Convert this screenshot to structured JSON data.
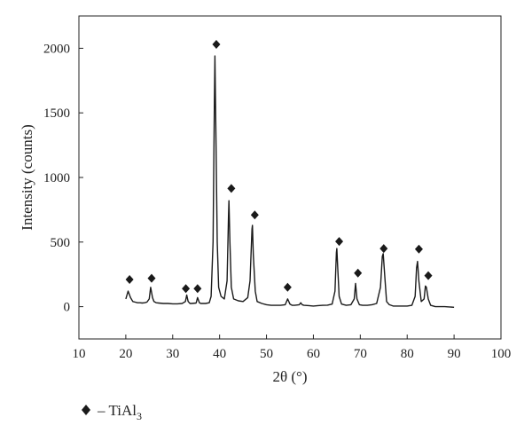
{
  "chart_data": {
    "type": "line",
    "xlabel": "2θ (°)",
    "ylabel": "Intensity (counts)",
    "xlim": [
      10,
      100
    ],
    "ylim": [
      -250,
      2250
    ],
    "xticks": [
      10,
      20,
      30,
      40,
      50,
      60,
      70,
      80,
      90,
      100
    ],
    "yticks": [
      0,
      500,
      1000,
      1500,
      2000
    ],
    "series": [
      {
        "name": "",
        "x": [
          20.0,
          20.5,
          21.0,
          21.5,
          22.0,
          22.5,
          23.0,
          23.5,
          24.0,
          24.5,
          25.0,
          25.3,
          25.7,
          26.0,
          26.5,
          27.0,
          28.0,
          29.0,
          30.0,
          31.0,
          32.0,
          32.7,
          33.0,
          33.3,
          33.7,
          34.0,
          35.0,
          35.3,
          35.7,
          36.0,
          37.0,
          37.8,
          38.2,
          38.6,
          38.9,
          39.0,
          39.2,
          39.5,
          39.8,
          40.3,
          41.0,
          41.6,
          41.9,
          42.0,
          42.2,
          42.5,
          43.0,
          44.0,
          45.0,
          46.0,
          46.5,
          46.9,
          47.0,
          47.2,
          47.6,
          48.0,
          49.0,
          50.0,
          51.0,
          52.0,
          53.0,
          54.0,
          54.5,
          55.0,
          55.5,
          56.0,
          57.0,
          57.3,
          57.6,
          58.0,
          59.0,
          60.0,
          61.0,
          62.0,
          63.0,
          64.0,
          64.6,
          64.9,
          65.0,
          65.2,
          65.5,
          66.0,
          67.0,
          68.0,
          68.7,
          69.0,
          69.3,
          69.8,
          70.5,
          71.5,
          72.5,
          73.5,
          74.3,
          74.7,
          74.9,
          75.2,
          75.6,
          76.2,
          77.0,
          78.0,
          79.0,
          80.0,
          81.0,
          81.7,
          82.0,
          82.2,
          82.5,
          83.0,
          83.6,
          83.9,
          84.1,
          84.5,
          85.0,
          86.0,
          87.0,
          88.0,
          89.0,
          90.0
        ],
        "y": [
          60,
          120,
          70,
          40,
          35,
          30,
          30,
          28,
          30,
          35,
          60,
          150,
          70,
          40,
          30,
          28,
          25,
          25,
          22,
          22,
          25,
          40,
          90,
          40,
          25,
          25,
          28,
          70,
          30,
          25,
          25,
          30,
          80,
          500,
          1600,
          1940,
          1400,
          500,
          150,
          80,
          60,
          200,
          700,
          820,
          500,
          150,
          60,
          45,
          40,
          70,
          200,
          600,
          630,
          400,
          120,
          40,
          25,
          15,
          10,
          10,
          10,
          15,
          60,
          20,
          10,
          10,
          15,
          30,
          15,
          10,
          8,
          5,
          8,
          10,
          12,
          20,
          120,
          420,
          450,
          300,
          80,
          20,
          10,
          15,
          60,
          180,
          60,
          15,
          10,
          10,
          15,
          25,
          150,
          390,
          410,
          250,
          40,
          15,
          5,
          5,
          5,
          5,
          10,
          80,
          300,
          350,
          200,
          40,
          60,
          160,
          150,
          60,
          10,
          0,
          0,
          0,
          -2,
          -5
        ]
      }
    ],
    "peak_markers": {
      "x": [
        20.8,
        25.5,
        32.8,
        35.3,
        39.3,
        42.5,
        47.5,
        54.5,
        65.5,
        69.5,
        75.0,
        82.5,
        84.5
      ],
      "y": [
        210,
        220,
        140,
        140,
        2030,
        915,
        710,
        150,
        505,
        260,
        450,
        445,
        240
      ],
      "symbol": "diamond",
      "label": "– TiAl"
    },
    "legend": {
      "symbol": "diamond",
      "label": "– TiAl",
      "subscript": "3",
      "position": "bottom-left"
    },
    "colors": {
      "line": "#1a1a1a",
      "axes": "#222222",
      "marker": "#1a1a1a"
    }
  }
}
